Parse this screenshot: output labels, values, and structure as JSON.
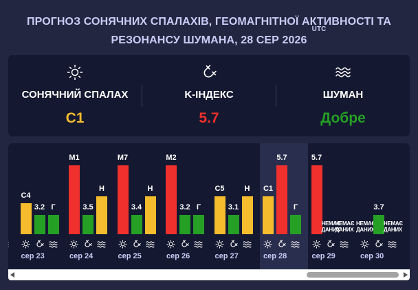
{
  "header": {
    "title_line1": "ПРОГНОЗ СОНЯЧНИХ СПАЛАХІВ, ГЕОМАГНІТНОЇ АКТИВНОСТІ ТА",
    "title_line2": "РЕЗОНАНСУ ШУМАНА, 28 СЕР 2026",
    "utc": "UTC"
  },
  "summary": {
    "flare": {
      "label": "СОНЯЧНИЙ СПАЛАХ",
      "value": "C1",
      "icon": "sun-icon",
      "color": "#f5bd2d"
    },
    "kindex": {
      "label": "K-ІНДЕКС",
      "value": "5.7",
      "icon": "magnet-icon",
      "color": "#f0302c"
    },
    "schumann": {
      "label": "ШУМАН",
      "value": "Добре",
      "icon": "waves-icon",
      "color": "#25a025"
    }
  },
  "colors": {
    "yellow": "#f5bd2d",
    "red": "#f0302c",
    "green": "#25a025",
    "panel": "#141830",
    "background": "#232640",
    "today_highlight": "#2a2e4e"
  },
  "no_data_label": "НЕМАЄ ДАНИХ",
  "days": [
    {
      "label": "",
      "flare": {
        "level": 0.55,
        "color": "yellow",
        "text": ""
      },
      "kp": null,
      "schumann": null
    },
    {
      "label": "сер 23",
      "flare": {
        "level": 0.45,
        "color": "yellow",
        "text": "C4"
      },
      "kp": {
        "level": 0.28,
        "color": "green",
        "text": "3.2"
      },
      "schumann": {
        "level": 0.28,
        "color": "green",
        "text": "Г"
      }
    },
    {
      "label": "сер 24",
      "flare": {
        "level": 1.0,
        "color": "red",
        "text": "M1"
      },
      "kp": {
        "level": 0.28,
        "color": "green",
        "text": "3.5"
      },
      "schumann": {
        "level": 0.55,
        "color": "yellow",
        "text": "Н"
      }
    },
    {
      "label": "сер 25",
      "flare": {
        "level": 1.0,
        "color": "red",
        "text": "M7"
      },
      "kp": {
        "level": 0.28,
        "color": "green",
        "text": "3.4"
      },
      "schumann": {
        "level": 0.55,
        "color": "yellow",
        "text": "Н"
      }
    },
    {
      "label": "сер 26",
      "flare": {
        "level": 1.0,
        "color": "red",
        "text": "M2"
      },
      "kp": {
        "level": 0.28,
        "color": "green",
        "text": "3.2"
      },
      "schumann": {
        "level": 0.28,
        "color": "green",
        "text": "Г"
      }
    },
    {
      "label": "сер 27",
      "flare": {
        "level": 0.55,
        "color": "yellow",
        "text": "C5"
      },
      "kp": {
        "level": 0.28,
        "color": "green",
        "text": "3.1"
      },
      "schumann": {
        "level": 0.55,
        "color": "yellow",
        "text": "Н"
      }
    },
    {
      "label": "сер 28",
      "flare": {
        "level": 0.55,
        "color": "yellow",
        "text": "C1"
      },
      "kp": {
        "level": 1.0,
        "color": "red",
        "text": "5.7"
      },
      "schumann": {
        "level": 0.28,
        "color": "green",
        "text": "Г"
      }
    },
    {
      "label": "сер 29",
      "flare": {
        "level": 1.0,
        "color": "red",
        "text": "5.7"
      },
      "kp": null,
      "schumann": null
    },
    {
      "label": "сер 30",
      "flare": null,
      "kp": {
        "level": 0.28,
        "color": "green",
        "text": "3.7"
      },
      "schumann": null
    }
  ]
}
